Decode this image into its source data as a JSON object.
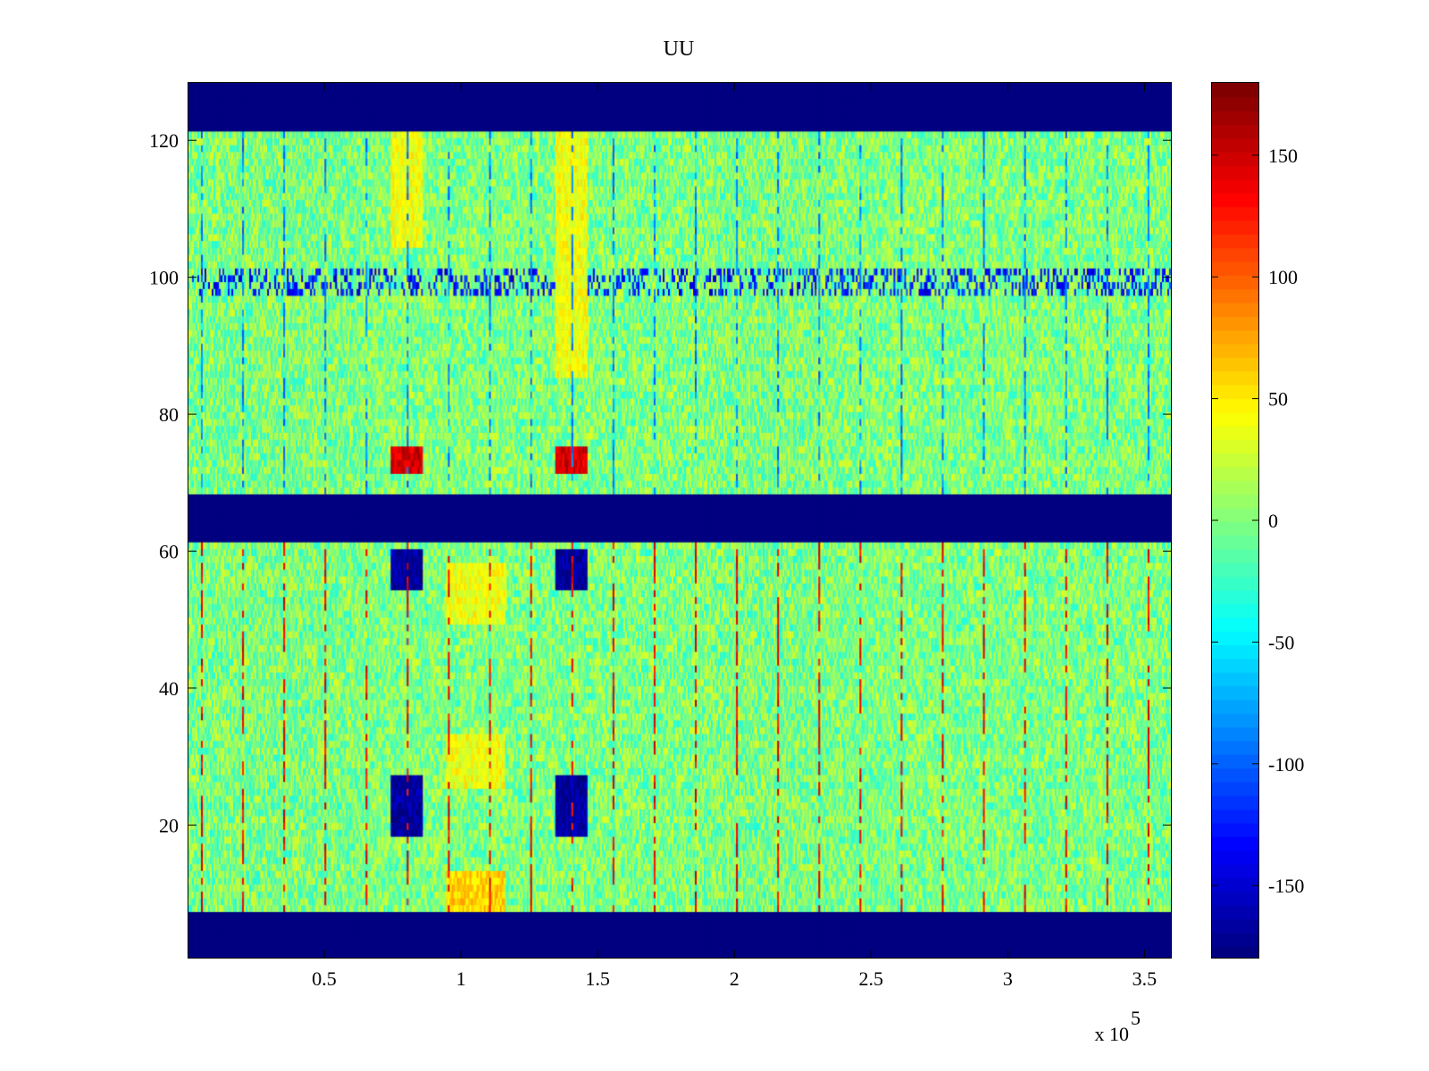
{
  "chart_data": {
    "type": "heatmap",
    "title": "UU",
    "xlabel": "",
    "ylabel": "",
    "x_multiplier_label": "x 10",
    "x_multiplier_exponent": "5",
    "xlim": [
      0.0,
      3.6
    ],
    "ylim": [
      0.5,
      128.5
    ],
    "x_ticks": [
      0.5,
      1,
      1.5,
      2,
      2.5,
      3,
      3.5
    ],
    "x_tick_labels": [
      "0.5",
      "1",
      "1.5",
      "2",
      "2.5",
      "3",
      "3.5"
    ],
    "y_ticks": [
      20,
      40,
      60,
      80,
      100,
      120
    ],
    "y_tick_labels": [
      "20",
      "40",
      "60",
      "80",
      "100",
      "120"
    ],
    "colorbar": {
      "range": [
        -180,
        180
      ],
      "ticks": [
        -150,
        -100,
        -50,
        0,
        50,
        100,
        150
      ],
      "tick_labels": [
        "-150",
        "-100",
        "-50",
        "0",
        "50",
        "100",
        "150"
      ],
      "colormap": "jet"
    },
    "masked_row_bands": [
      [
        1,
        7
      ],
      [
        62,
        68
      ],
      [
        122,
        128
      ]
    ],
    "masked_value": -180,
    "background_value": 0,
    "features": [
      {
        "kind": "row",
        "y": [
          98,
          101
        ],
        "value": -160,
        "note": "intermittent dark bursts"
      },
      {
        "kind": "cell",
        "x": [
          0.74,
          0.86
        ],
        "y": [
          72,
          75
        ],
        "value": 150
      },
      {
        "kind": "cell",
        "x": [
          1.34,
          1.46
        ],
        "y": [
          72,
          75
        ],
        "value": 150
      },
      {
        "kind": "cell",
        "x": [
          0.74,
          0.86
        ],
        "y": [
          55,
          60
        ],
        "value": -170
      },
      {
        "kind": "cell",
        "x": [
          1.34,
          1.46
        ],
        "y": [
          55,
          60
        ],
        "value": -170
      },
      {
        "kind": "cell",
        "x": [
          0.74,
          0.86
        ],
        "y": [
          22,
          27
        ],
        "value": -170
      },
      {
        "kind": "cell",
        "x": [
          1.34,
          1.46
        ],
        "y": [
          22,
          27
        ],
        "value": -170
      },
      {
        "kind": "cell",
        "x": [
          0.74,
          0.86
        ],
        "y": [
          19,
          21
        ],
        "value": -170
      },
      {
        "kind": "cell",
        "x": [
          1.34,
          1.46
        ],
        "y": [
          19,
          21
        ],
        "value": -170
      },
      {
        "kind": "cell",
        "x": [
          0.94,
          1.16
        ],
        "y": [
          8,
          13
        ],
        "value": 60
      },
      {
        "kind": "cell",
        "x": [
          0.94,
          1.16
        ],
        "y": [
          26,
          33
        ],
        "value": 40
      },
      {
        "kind": "cell",
        "x": [
          0.94,
          1.16
        ],
        "y": [
          50,
          58
        ],
        "value": 40
      },
      {
        "kind": "cell",
        "x": [
          0.74,
          0.86
        ],
        "y": [
          105,
          121
        ],
        "value": 40
      },
      {
        "kind": "cell",
        "x": [
          1.34,
          1.46
        ],
        "y": [
          86,
          121
        ],
        "value": 40
      }
    ]
  }
}
